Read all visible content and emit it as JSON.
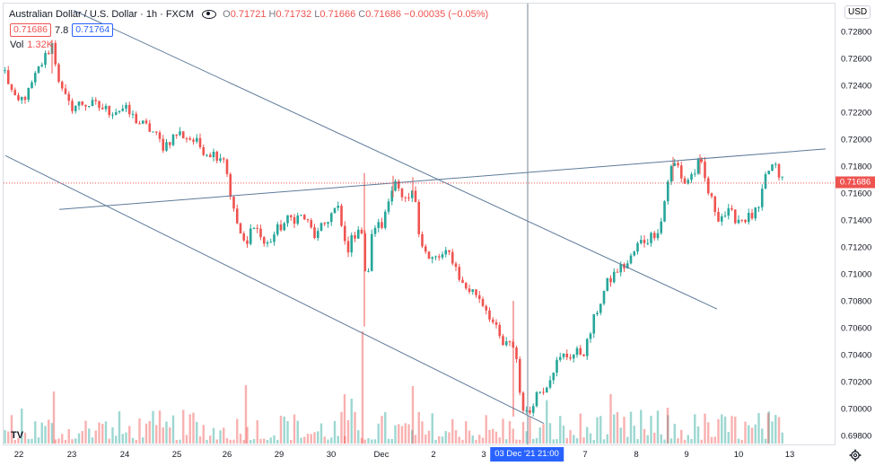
{
  "header": {
    "symbol_title": "Australian Dollar / U.S. Dollar · 1h · FXCM",
    "ohlc": {
      "o_label": "O",
      "o_value": "0.71721",
      "h_label": "H",
      "h_value": "0.71732",
      "l_label": "L",
      "l_value": "0.71666",
      "c_label": "C",
      "c_value": "0.71686",
      "change": "−0.00035 (−0.05%)"
    },
    "bid": "0.71686",
    "spread": "7.8",
    "ask": "0.71764",
    "volume_label": "Vol",
    "volume_value": "1.32K",
    "currency_button": "USD",
    "eye_icon": "eye-icon",
    "settings_icon": "gear-icon",
    "logo_text": "TV"
  },
  "price_axis": {
    "ticks": [
      "0.72800",
      "0.72600",
      "0.72400",
      "0.72200",
      "0.72000",
      "0.71800",
      "0.71600",
      "0.71400",
      "0.71200",
      "0.71000",
      "0.70800",
      "0.70600",
      "0.70400",
      "0.70200",
      "0.70000",
      "0.69800"
    ],
    "current_price": "0.71686"
  },
  "time_axis": {
    "ticks": [
      "22",
      "23",
      "24",
      "25",
      "26",
      "29",
      "30",
      "Dec",
      "2",
      "3",
      "7",
      "8",
      "9",
      "10",
      "13"
    ],
    "crosshair_label": "03 Dec '21   21:00"
  },
  "colors": {
    "up": "#26a69a",
    "down": "#ef5350",
    "line": "#5d7a99",
    "crosshair": "#758696",
    "accent": "#2962ff"
  },
  "chart_data": {
    "type": "candlestick",
    "title": "Australian Dollar / U.S. Dollar · 1h · FXCM",
    "ylim": [
      0.6973,
      0.7302
    ],
    "x": [
      "22",
      "23",
      "24",
      "25",
      "26",
      "29",
      "30",
      "Dec",
      "2",
      "3",
      "7",
      "8",
      "9",
      "10",
      "13"
    ],
    "path": [
      [
        0,
        0.7254
      ],
      [
        14,
        0.7227
      ],
      [
        28,
        0.7236
      ],
      [
        38,
        0.7252
      ],
      [
        54,
        0.7272
      ],
      [
        64,
        0.7238
      ],
      [
        74,
        0.7225
      ],
      [
        88,
        0.7228
      ],
      [
        104,
        0.7226
      ],
      [
        118,
        0.7222
      ],
      [
        134,
        0.7224
      ],
      [
        150,
        0.7214
      ],
      [
        166,
        0.7207
      ],
      [
        178,
        0.7196
      ],
      [
        194,
        0.7206
      ],
      [
        210,
        0.7201
      ],
      [
        226,
        0.7192
      ],
      [
        246,
        0.7188
      ],
      [
        256,
        0.7148
      ],
      [
        270,
        0.7118
      ],
      [
        278,
        0.7141
      ],
      [
        292,
        0.7121
      ],
      [
        304,
        0.7133
      ],
      [
        318,
        0.7142
      ],
      [
        334,
        0.7144
      ],
      [
        348,
        0.7128
      ],
      [
        362,
        0.7143
      ],
      [
        372,
        0.7151
      ],
      [
        382,
        0.7118
      ],
      [
        398,
        0.714
      ],
      [
        404,
        0.709
      ],
      [
        412,
        0.7138
      ],
      [
        422,
        0.7136
      ],
      [
        428,
        0.7158
      ],
      [
        436,
        0.7169
      ],
      [
        446,
        0.7152
      ],
      [
        458,
        0.7162
      ],
      [
        464,
        0.7128
      ],
      [
        474,
        0.7111
      ],
      [
        488,
        0.7114
      ],
      [
        498,
        0.7116
      ],
      [
        512,
        0.7092
      ],
      [
        528,
        0.7086
      ],
      [
        540,
        0.7073
      ],
      [
        556,
        0.7048
      ],
      [
        570,
        0.7048
      ],
      [
        576,
        0.7008
      ],
      [
        584,
        0.6994
      ],
      [
        592,
        0.7011
      ],
      [
        604,
        0.7018
      ],
      [
        614,
        0.7033
      ],
      [
        624,
        0.704
      ],
      [
        634,
        0.7041
      ],
      [
        648,
        0.7044
      ],
      [
        660,
        0.7072
      ],
      [
        672,
        0.7093
      ],
      [
        684,
        0.7104
      ],
      [
        696,
        0.7109
      ],
      [
        708,
        0.7124
      ],
      [
        720,
        0.7128
      ],
      [
        732,
        0.7137
      ],
      [
        742,
        0.7178
      ],
      [
        750,
        0.7184
      ],
      [
        758,
        0.7168
      ],
      [
        770,
        0.7177
      ],
      [
        776,
        0.7185
      ],
      [
        786,
        0.716
      ],
      [
        796,
        0.7144
      ],
      [
        808,
        0.7146
      ],
      [
        818,
        0.7142
      ],
      [
        832,
        0.7143
      ],
      [
        842,
        0.7149
      ],
      [
        850,
        0.7176
      ],
      [
        858,
        0.7182
      ],
      [
        866,
        0.7172
      ],
      [
        872,
        0.7168
      ]
    ],
    "spikes": [
      [
        402,
        0.7176,
        0.7062
      ],
      [
        568,
        0.7081,
        0.6995
      ],
      [
        434,
        0.7174,
        0.7158
      ],
      [
        456,
        0.7173,
        0.716
      ],
      [
        746,
        0.7188,
        0.717
      ],
      [
        776,
        0.719,
        0.7175
      ],
      [
        54,
        0.7275,
        0.725
      ]
    ],
    "trendlines": [
      {
        "name": "upper-channel",
        "from": [
          78,
          0.7297
        ],
        "to": [
          795,
          0.7075
        ]
      },
      {
        "name": "lower-channel",
        "from": [
          2,
          0.7189
        ],
        "to": [
          602,
          0.699
        ]
      },
      {
        "name": "resistance",
        "from": [
          62,
          0.7149
        ],
        "to": [
          916,
          0.7194
        ]
      }
    ],
    "crosshair_x": 584,
    "last_price": 0.71686
  }
}
